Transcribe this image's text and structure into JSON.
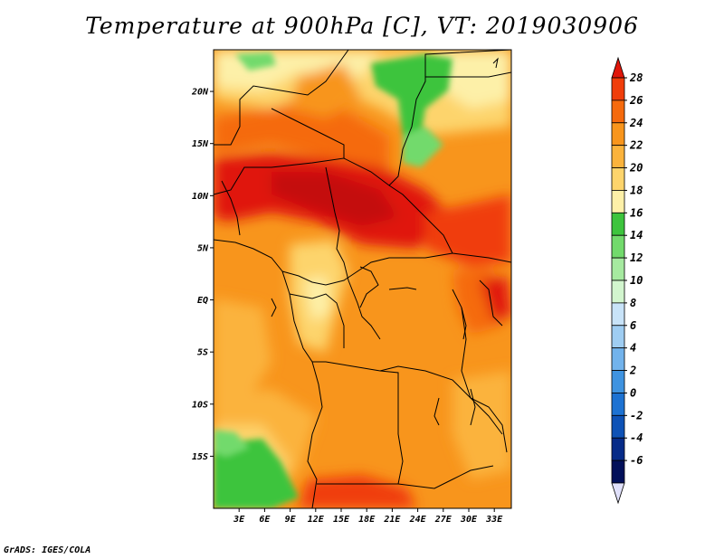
{
  "title": "Temperature at 900hPa [C], VT: 2019030906",
  "credit": "GrADS: IGES/COLA",
  "map": {
    "lon_range": [
      0,
      35
    ],
    "lat_range": [
      -20,
      24
    ],
    "lat_ticks": [
      {
        "value": 20,
        "label": "20N"
      },
      {
        "value": 15,
        "label": "15N"
      },
      {
        "value": 10,
        "label": "10N"
      },
      {
        "value": 5,
        "label": "5N"
      },
      {
        "value": 0,
        "label": "EQ"
      },
      {
        "value": -5,
        "label": "5S"
      },
      {
        "value": -10,
        "label": "10S"
      },
      {
        "value": -15,
        "label": "15S"
      }
    ],
    "lon_ticks": [
      {
        "value": 3,
        "label": "3E"
      },
      {
        "value": 6,
        "label": "6E"
      },
      {
        "value": 9,
        "label": "9E"
      },
      {
        "value": 12,
        "label": "12E"
      },
      {
        "value": 15,
        "label": "15E"
      },
      {
        "value": 18,
        "label": "18E"
      },
      {
        "value": 21,
        "label": "21E"
      },
      {
        "value": 24,
        "label": "24E"
      },
      {
        "value": 27,
        "label": "27E"
      },
      {
        "value": 30,
        "label": "30E"
      },
      {
        "value": 33,
        "label": "33E"
      }
    ]
  },
  "colorbar": {
    "levels": [
      "28",
      "26",
      "24",
      "22",
      "20",
      "18",
      "16",
      "14",
      "12",
      "10",
      "8",
      "6",
      "4",
      "2",
      "0",
      "-2",
      "-4",
      "-6"
    ],
    "colors": [
      "#e0160a",
      "#f03d0a",
      "#f56a0d",
      "#f8951c",
      "#fbb33c",
      "#fdd46c",
      "#fdf0a8",
      "#3dc43d",
      "#72da6c",
      "#a6eaa0",
      "#d2f5ce",
      "#c8e3f8",
      "#9fcdf2",
      "#72b3ec",
      "#3f93e0",
      "#1d72d2",
      "#0e52b6",
      "#062b88",
      "#02105a",
      "#e0e0fa"
    ]
  }
}
